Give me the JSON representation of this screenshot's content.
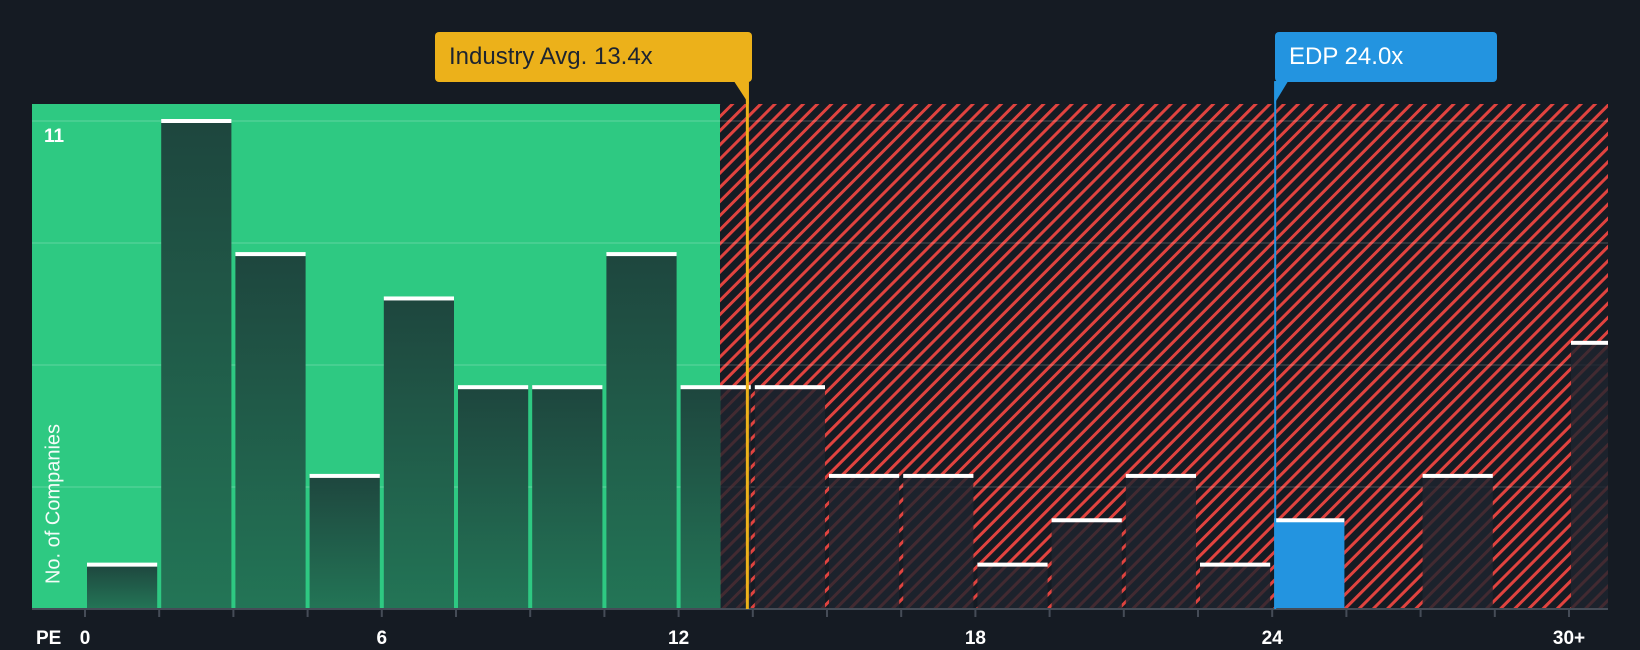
{
  "chart_data": {
    "type": "bar",
    "title": "",
    "xlabel": "PE",
    "ylabel": "No. of Companies",
    "bin_width": 1.5,
    "categories": [
      "0-1.5",
      "1.5-3",
      "3-4.5",
      "4.5-6",
      "6-7.5",
      "7.5-9",
      "9-10.5",
      "10.5-12",
      "12-13.5",
      "13.5-15",
      "15-16.5",
      "16.5-18",
      "18-19.5",
      "19.5-21",
      "21-22.5",
      "22.5-24",
      "24-25.5",
      "25.5-27",
      "27-28.5",
      "28.5-30",
      "30+"
    ],
    "values": [
      1,
      11,
      8,
      3,
      7,
      5,
      5,
      8,
      5,
      5,
      3,
      3,
      1,
      2,
      3,
      1,
      2,
      0,
      3,
      0,
      6
    ],
    "highlight_bin_index": 16,
    "ylim": [
      0,
      11
    ],
    "y_tick_labels": [
      "11"
    ],
    "y_gridlines": [
      2.75,
      5.5,
      8.25,
      11
    ],
    "x_tick_labels": [
      {
        "value": 0,
        "label": "0"
      },
      {
        "value": 6,
        "label": "6"
      },
      {
        "value": 12,
        "label": "12"
      },
      {
        "value": 18,
        "label": "18"
      },
      {
        "value": 24,
        "label": "24"
      },
      {
        "value": 30,
        "label": "30+"
      }
    ],
    "fair_region_end": 12.85,
    "annotations": [
      {
        "label": "Industry Avg. 13.4x",
        "value": 13.4,
        "color": "#ecb11a"
      },
      {
        "label": "EDP 24.0x",
        "value": 24.0,
        "color": "#2394e0"
      }
    ],
    "grid": true,
    "legend": "none"
  },
  "labels": {
    "industry_avg": "Industry Avg. 13.4x",
    "company": "EDP 24.0x",
    "y_axis": "No. of Companies",
    "y_max": "11",
    "x_axis": "PE",
    "x_ticks": [
      "0",
      "6",
      "12",
      "18",
      "24",
      "30+"
    ]
  },
  "colors": {
    "background": "#151b23",
    "fair_region": "#2ec982",
    "overvalued_hatch": "#e0433f",
    "bar_fair": "#1f4a40",
    "bar_over": "#1c212a",
    "bar_highlight": "#2394e0",
    "industry_line": "#ecb11a",
    "bar_cap": "#ffffff"
  }
}
